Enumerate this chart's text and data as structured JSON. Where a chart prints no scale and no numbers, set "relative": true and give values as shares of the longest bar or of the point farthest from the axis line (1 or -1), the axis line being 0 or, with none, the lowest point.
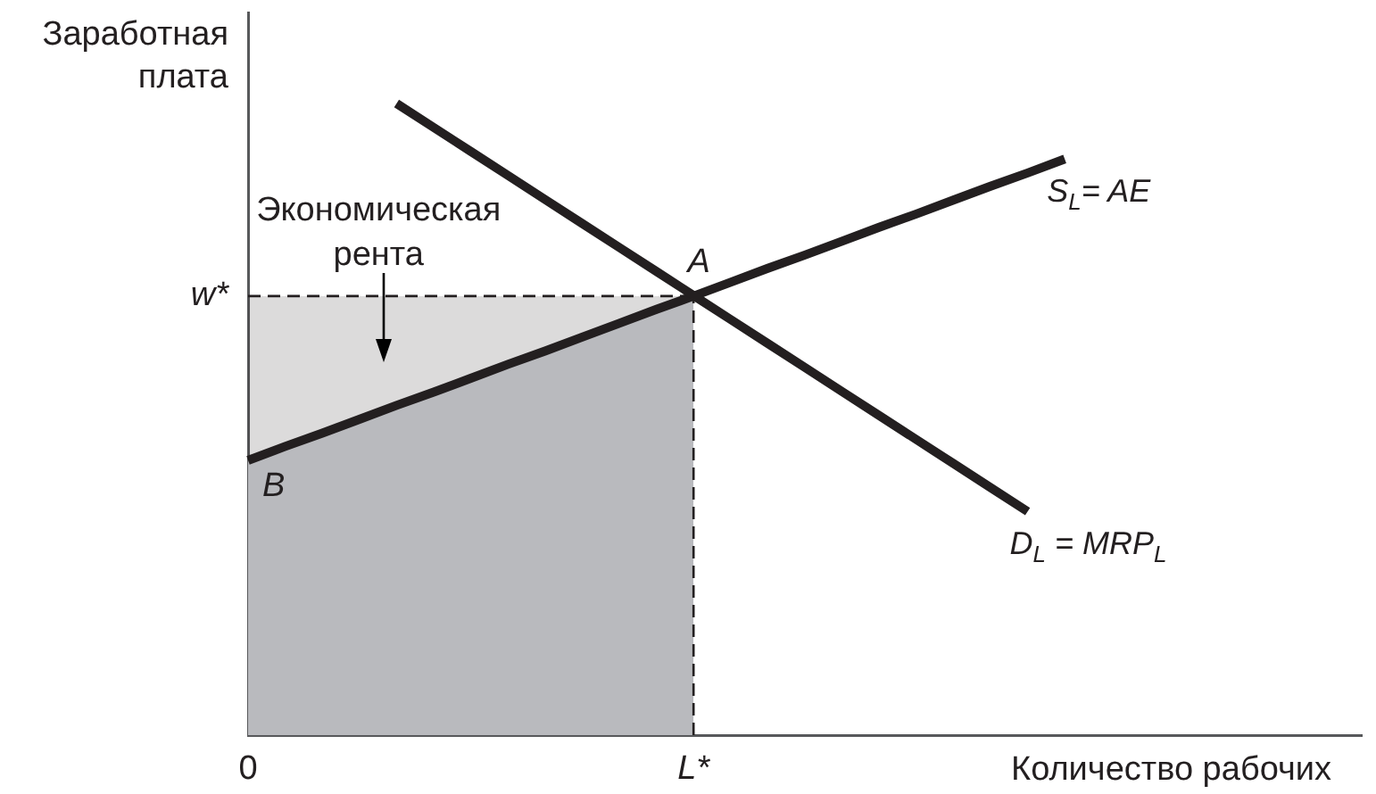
{
  "chart_data": {
    "type": "line",
    "xlabel": "Количество рабочих",
    "ylabel": "Заработная плата",
    "relative": true,
    "categories": [
      "0",
      null,
      null,
      null,
      null,
      null,
      null,
      null,
      null,
      null,
      null,
      null,
      "L*",
      null,
      null,
      null,
      null,
      null,
      null,
      null,
      null,
      null,
      null,
      null,
      null,
      null,
      null,
      null,
      null,
      null,
      null
    ],
    "series": [
      {
        "type": "area",
        "color": "#b9babe",
        "values": [
          0.435,
          0.457,
          0.478,
          0.5,
          0.522,
          0.543,
          0.565,
          0.587,
          0.608,
          0.63,
          0.652,
          0.674,
          0.695,
          null,
          null,
          null,
          null,
          null,
          null,
          null,
          null,
          null,
          null,
          null,
          null,
          null,
          null,
          null,
          null,
          null,
          null
        ]
      },
      {
        "color": "#231f20",
        "line_style": "dashed",
        "values": [
          0.695,
          0.695,
          0.695,
          0.695,
          0.695,
          0.695,
          0.695,
          0.695,
          0.695,
          0.695,
          0.695,
          0.695,
          0.695,
          null,
          null,
          null,
          null,
          null,
          null,
          null,
          null,
          null,
          null,
          null,
          null,
          null,
          null,
          null,
          null,
          null,
          null
        ],
        "lower": [
          0.435,
          0.457,
          0.478,
          0.5,
          0.522,
          0.543,
          0.565,
          0.587,
          0.608,
          0.63,
          0.652,
          0.674,
          0.695,
          null,
          null,
          null,
          null,
          null,
          null,
          null,
          null,
          null,
          null,
          null,
          null,
          null,
          null,
          null,
          null,
          null,
          null
        ],
        "upper": [
          0.695,
          0.695,
          0.695,
          0.695,
          0.695,
          0.695,
          0.695,
          0.695,
          0.695,
          0.695,
          0.695,
          0.695,
          0.695,
          null,
          null,
          null,
          null,
          null,
          null,
          null,
          null,
          null,
          null,
          null,
          null,
          null,
          null,
          null,
          null,
          null,
          null
        ]
      },
      {
        "color": "#231f20",
        "line_style": "dashed",
        "x": [
          "L*",
          "L*"
        ],
        "values": [
          0,
          0.695
        ]
      },
      {
        "name": "S$_{L}$= AE",
        "color": "#231f20",
        "values": [
          0.435,
          0.457,
          0.478,
          0.5,
          0.522,
          0.543,
          0.565,
          0.587,
          0.608,
          0.63,
          0.652,
          0.674,
          0.695,
          0.717,
          0.739,
          0.76,
          0.782,
          0.804,
          0.825,
          0.847,
          0.869,
          0.89,
          0.912,
          null,
          null,
          null,
          null,
          null,
          null,
          null,
          null
        ]
      },
      {
        "name": "D$_{L}$ = MRP$_{L}$",
        "color": "#231f20",
        "values": [
          null,
          null,
          null,
          null,
          1,
          0.962,
          0.924,
          0.886,
          0.848,
          0.81,
          0.772,
          0.734,
          0.696,
          0.658,
          0.62,
          0.582,
          0.544,
          0.506,
          0.468,
          0.43,
          0.392,
          0.354,
          null,
          null,
          null,
          null,
          null,
          null,
          null,
          null,
          null
        ]
      }
    ],
    "annotations": [
      "Экономическая рента",
      {
        "text": "A",
        "x": "L*",
        "y": 0.695
      },
      {
        "text": "B",
        "x": "0",
        "y": 0.435
      },
      {
        "text": "w*",
        "x": "0",
        "y": 0.695
      }
    ]
  }
}
